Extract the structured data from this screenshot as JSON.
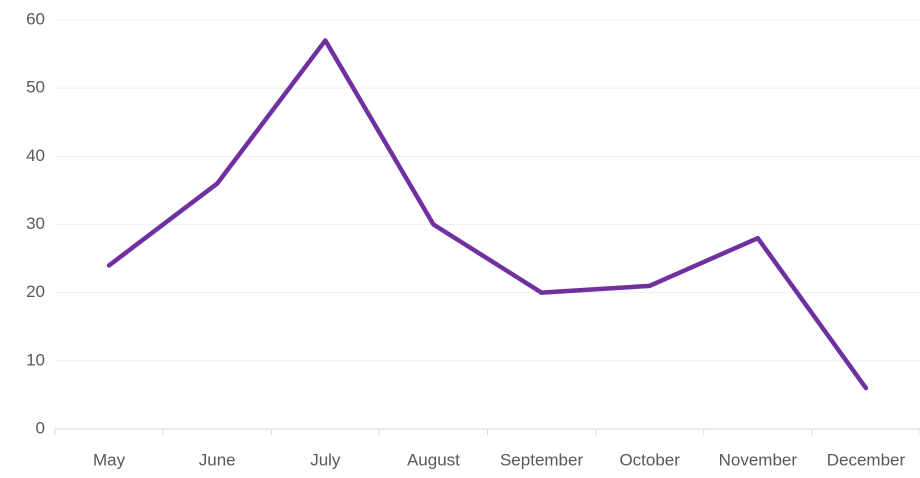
{
  "chart_data": {
    "type": "line",
    "categories": [
      "May",
      "June",
      "July",
      "August",
      "September",
      "October",
      "November",
      "December"
    ],
    "series": [
      {
        "color": "#7030a0",
        "values": [
          24,
          36,
          57,
          30,
          20,
          21,
          28,
          6
        ]
      }
    ],
    "ylim": [
      0,
      60
    ],
    "yticks": [
      0,
      10,
      20,
      30,
      40,
      50,
      60
    ],
    "grid": true
  }
}
